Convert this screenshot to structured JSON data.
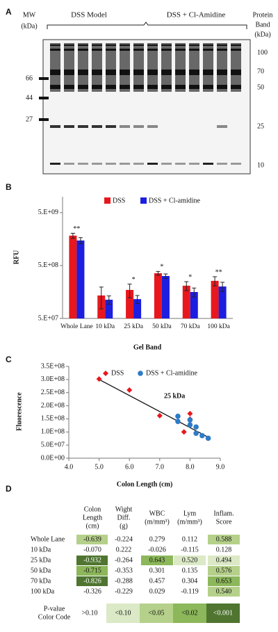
{
  "gel": {
    "label": "A",
    "mw_title": [
      "MW",
      "(kDa)"
    ],
    "group_labels": [
      "DSS Model",
      "DSS + Cl-Amidine"
    ],
    "band_title": [
      "Protein",
      "Band",
      "(kDa)"
    ],
    "marker_labels": [
      "66",
      "44",
      "27"
    ],
    "band_labels": [
      "100",
      "70",
      "50",
      "25",
      "10"
    ]
  },
  "chart_data": [
    {
      "type": "bar",
      "label": "B",
      "y_label": "RFU",
      "x_label": "Gel Band",
      "log_scale": true,
      "legend": "top",
      "categories": [
        "Whole Lane",
        "10 kDa",
        "25 kDa",
        "50 kDa",
        "70 kDa",
        "100 kDa"
      ],
      "series": [
        {
          "name": "DSS",
          "color": "#e8171d",
          "values": [
            1840000000,
            136000000,
            173000000,
            358000000,
            208000000,
            257000000
          ],
          "errors": [
            200000000,
            60000000,
            50000000,
            30000000,
            40000000,
            50000000
          ]
        },
        {
          "name": "DSS + Cl-amidine",
          "color": "#1c1ee0",
          "values": [
            1490000000,
            113000000,
            116000000,
            317000000,
            158000000,
            201000000
          ],
          "errors": [
            200000000,
            20000000,
            20000000,
            30000000,
            30000000,
            40000000
          ]
        }
      ],
      "sig_labels": [
        "**",
        null,
        "*",
        "*",
        "*",
        "**"
      ],
      "ylim": [
        50000000,
        10000000000
      ],
      "yticks": [
        {
          "value": 50000000,
          "label": "5.E+07"
        },
        {
          "value": 500000000,
          "label": "5.E+08"
        },
        {
          "value": 5000000000,
          "label": "5.E+09"
        }
      ]
    },
    {
      "type": "scatter",
      "label": "C",
      "y_label": "Fluorescence",
      "x_label": "Colon Length (cm)",
      "annotation": "25 kDa",
      "legend": "top",
      "series": [
        {
          "name": "DSS",
          "color": "#e8171d",
          "marker": "diamond",
          "x": [
            5.0,
            6.0,
            7.0,
            7.8,
            8.0,
            8.0
          ],
          "values": [
            302000000,
            260000000,
            162000000,
            100000000,
            170000000,
            149000000
          ]
        },
        {
          "name": "DSS + Cl-amidine",
          "color": "#2e7bc8",
          "marker": "circle",
          "x": [
            7.6,
            7.6,
            8.0,
            8.0,
            8.2,
            8.2,
            8.4,
            8.6
          ],
          "values": [
            160000000,
            140000000,
            146000000,
            127000000,
            119000000,
            95000000,
            86000000,
            76000000
          ]
        }
      ],
      "trendline": {
        "x": [
          5.0,
          8.6
        ],
        "values": [
          300000000,
          80000000
        ]
      },
      "xlim": [
        4,
        9
      ],
      "xticks": [
        {
          "value": 4,
          "label": "4.0"
        },
        {
          "value": 5,
          "label": "5.0"
        },
        {
          "value": 6,
          "label": "6.0"
        },
        {
          "value": 7,
          "label": "7.0"
        },
        {
          "value": 8,
          "label": "8.0"
        },
        {
          "value": 9,
          "label": "9.0"
        }
      ],
      "ylim": [
        0,
        350000000
      ],
      "yticks": [
        {
          "value": 0,
          "label": "0.0E+00"
        },
        {
          "value": 50000000,
          "label": "5.0E+07"
        },
        {
          "value": 100000000,
          "label": "1.0E+08"
        },
        {
          "value": 150000000,
          "label": "1.5E+08"
        },
        {
          "value": 200000000,
          "label": "2.0E+08"
        },
        {
          "value": 250000000,
          "label": "2.5E+08"
        },
        {
          "value": 300000000,
          "label": "3.0E+08"
        },
        {
          "value": 350000000,
          "label": "3.5E+08"
        }
      ]
    }
  ],
  "table": {
    "label": "D",
    "headers": [
      [
        "Colon",
        "Length",
        "(cm)"
      ],
      [
        "Wight",
        "Diff.",
        "(g)"
      ],
      [
        "WBC",
        "(m/mm³)"
      ],
      [
        "Lym",
        "(m/mm³)"
      ],
      [
        "Inflam.",
        "Score"
      ]
    ],
    "rows": [
      [
        "Whole Lane",
        "-0.639",
        "-0.224",
        "0.279",
        "0.112",
        "0.588"
      ],
      [
        "10 kDa",
        "-0.070",
        "0.222",
        "-0.026",
        "-0.115",
        "0.128"
      ],
      [
        "25 kDa",
        "-0.932",
        "-0.264",
        "0.643",
        "0.520",
        "0.494"
      ],
      [
        "50 kDa",
        "-0.715",
        "-0.353",
        "0.301",
        "0.135",
        "0.576"
      ],
      [
        "70 kDa",
        "-0.826",
        "-0.288",
        "0.457",
        "0.304",
        "0.653"
      ],
      [
        "100 kDa",
        "-0.326",
        "-0.229",
        "0.029",
        "-0.119",
        "0.540"
      ]
    ],
    "levels": [
      [
        2,
        0,
        0,
        0,
        2
      ],
      [
        0,
        0,
        0,
        0,
        0
      ],
      [
        4,
        0,
        3,
        1,
        1
      ],
      [
        3,
        0,
        0,
        0,
        2
      ],
      [
        4,
        0,
        0,
        0,
        3
      ],
      [
        0,
        0,
        0,
        0,
        2
      ]
    ],
    "legend_title": [
      "P-value",
      "Color Code"
    ],
    "legend": [
      {
        "label": ">0.10",
        "color": "#ffffff"
      },
      {
        "label": "<0.10",
        "color": "#dbe9c6"
      },
      {
        "label": "<0.05",
        "color": "#b5d08a"
      },
      {
        "label": "<0.02",
        "color": "#8cb75a"
      },
      {
        "label": "<0.001",
        "color": "#4f7530"
      }
    ]
  }
}
